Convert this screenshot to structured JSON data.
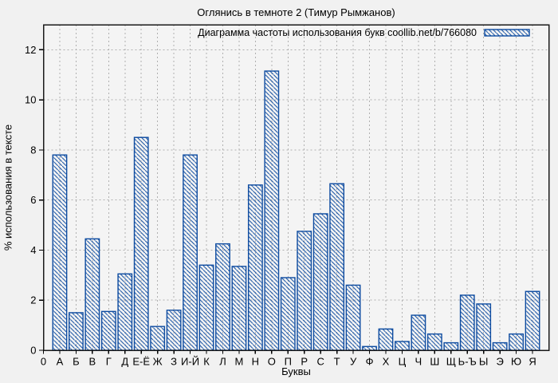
{
  "chart_data": {
    "type": "bar",
    "title": "Оглянись в темноте 2 (Тимур Рымжанов)",
    "legend_label": "Диаграмма частоты использования букв coollib.net/b/766080",
    "legend_position": "top-right-inside",
    "xlabel": "Буквы",
    "ylabel": "% использования в тексте",
    "origin_tick_label": "0",
    "categories": [
      "А",
      "Б",
      "В",
      "Г",
      "Д",
      "Е-Ё",
      "Ж",
      "З",
      "И-Й",
      "К",
      "Л",
      "М",
      "Н",
      "О",
      "П",
      "Р",
      "С",
      "Т",
      "У",
      "Ф",
      "Х",
      "Ц",
      "Ч",
      "Ш",
      "Щ",
      "Ь-Ъ",
      "Ы",
      "Э",
      "Ю",
      "Я"
    ],
    "values": [
      7.8,
      1.5,
      4.45,
      1.55,
      3.05,
      8.5,
      0.95,
      1.6,
      7.8,
      3.4,
      4.25,
      3.35,
      6.6,
      11.15,
      2.9,
      4.75,
      5.45,
      6.65,
      2.6,
      0.15,
      0.85,
      0.35,
      1.4,
      0.65,
      0.3,
      2.2,
      1.85,
      0.3,
      0.65,
      2.35
    ],
    "ylim": [
      0,
      13
    ],
    "yticks": [
      0,
      2,
      4,
      6,
      8,
      10,
      12
    ],
    "grid": true,
    "hatch": "diagonal-falling",
    "colors": {
      "bar": "#0d4ba0",
      "background": "#f1f1f1",
      "plot_background": "#f4f4f4",
      "grid": "#b0b0b0",
      "axis_border": "#1a1a1a"
    }
  }
}
